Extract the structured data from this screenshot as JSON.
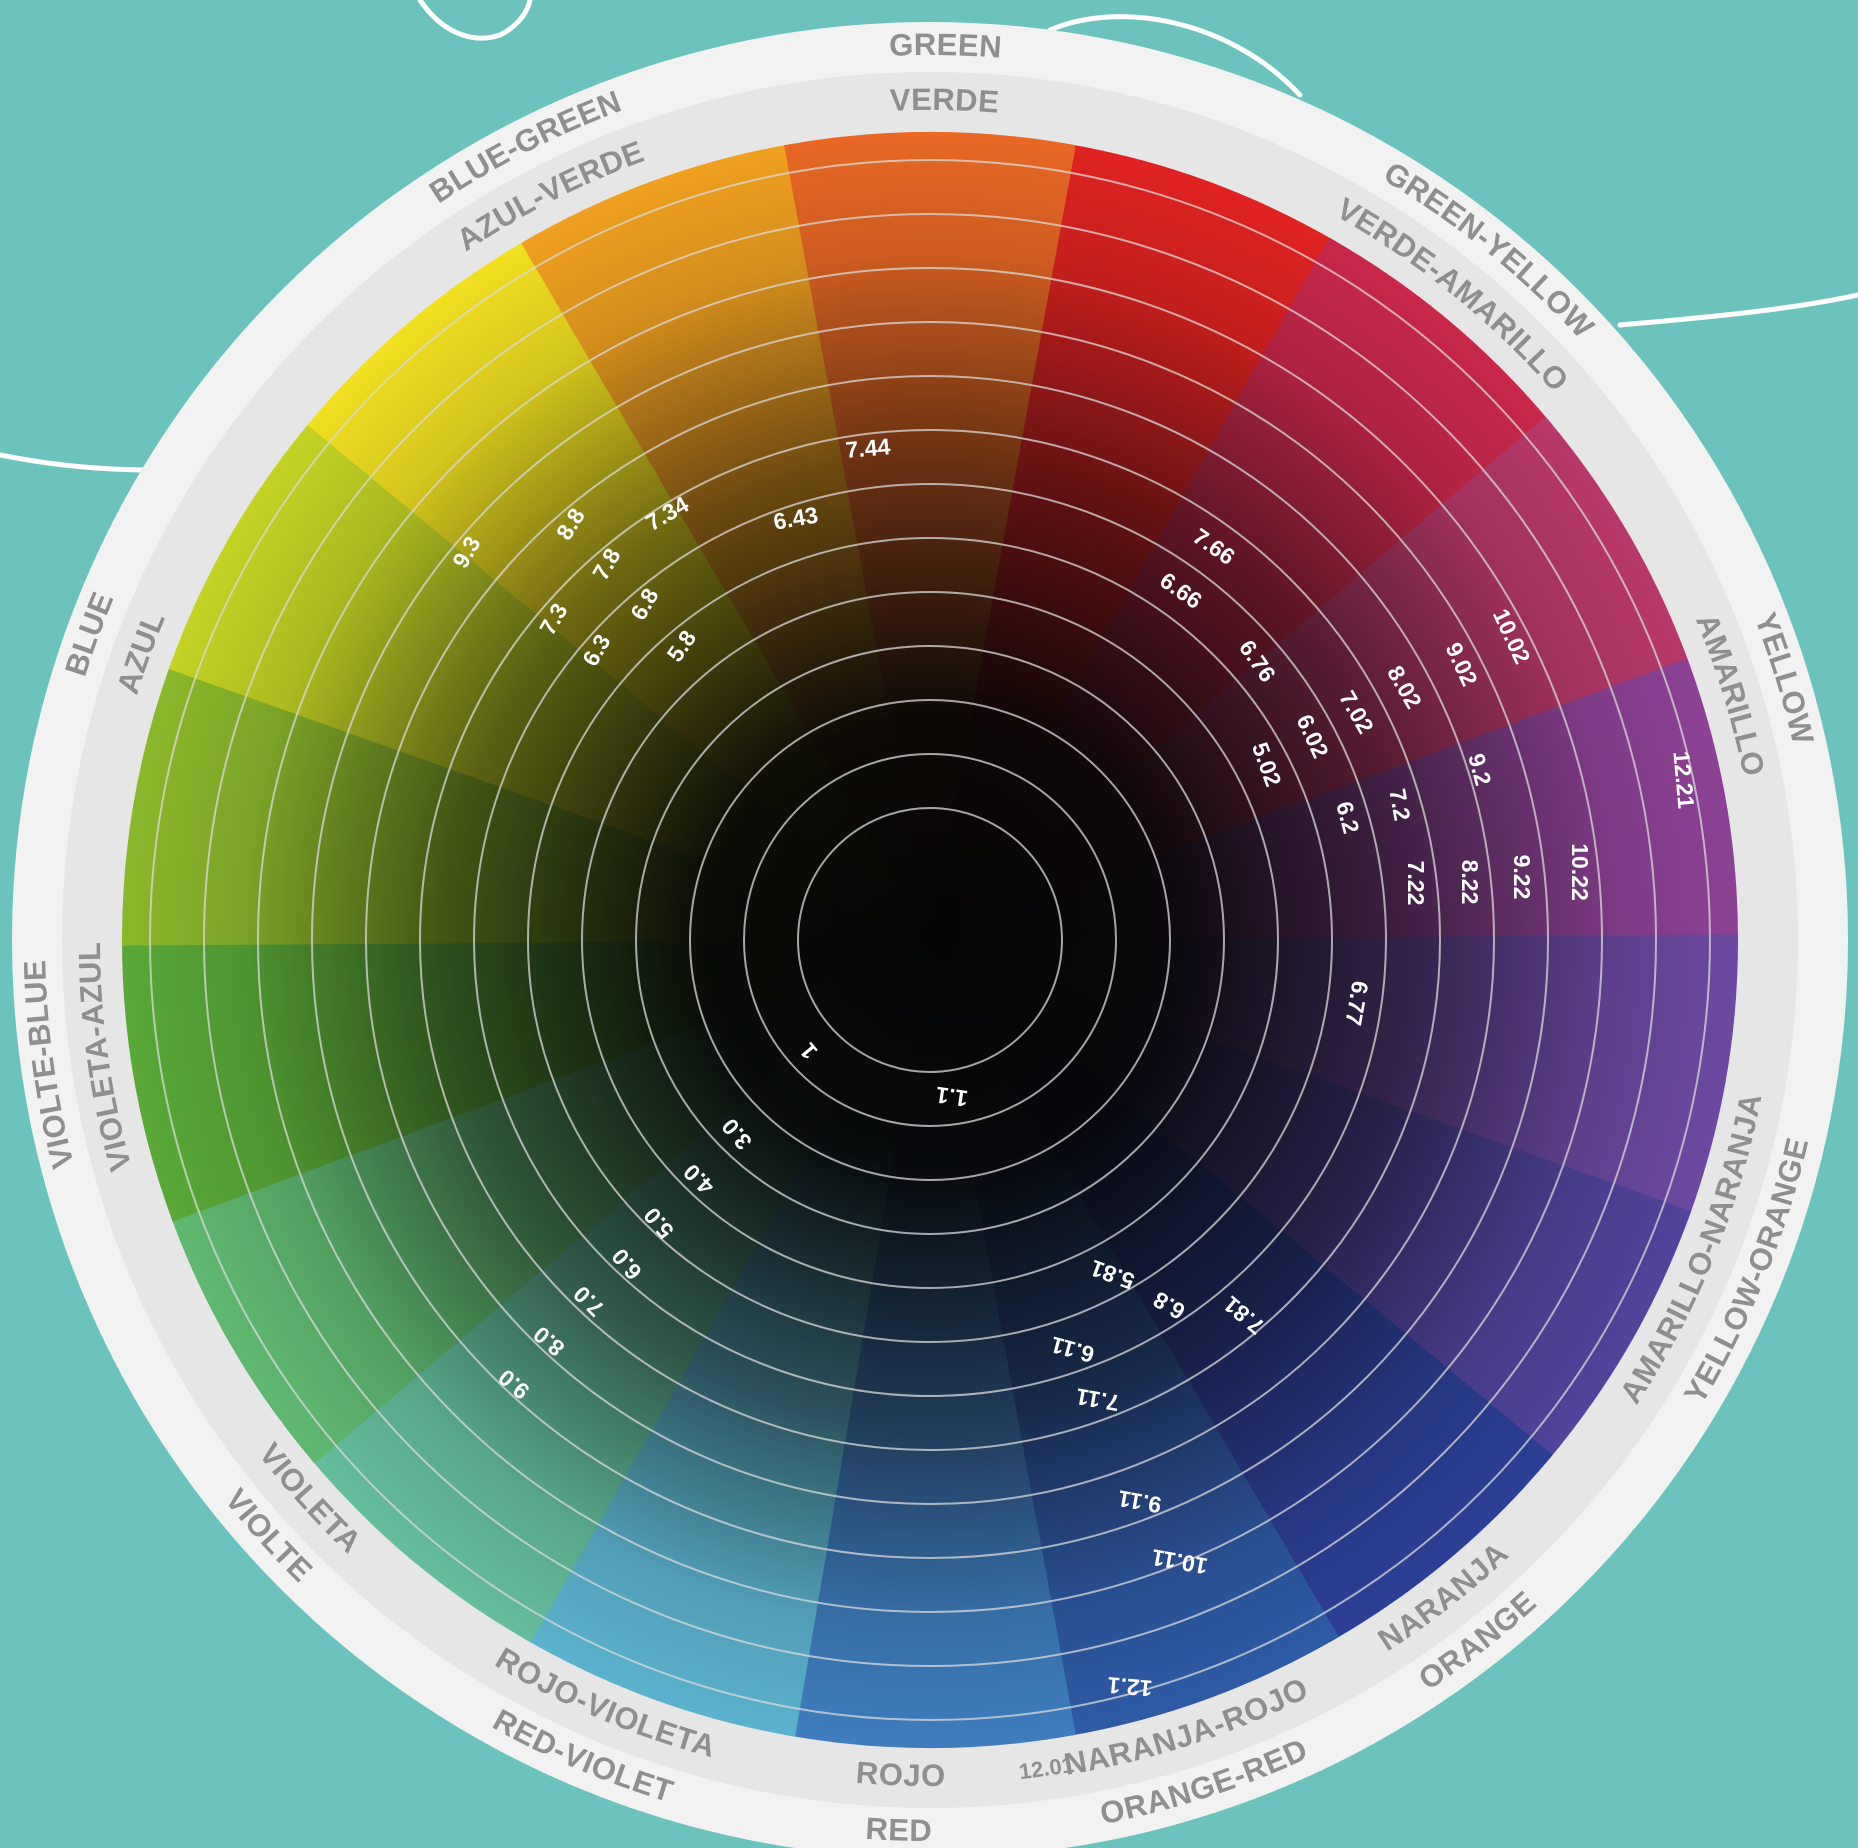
{
  "colors": {
    "background": "#6cc3be",
    "outer_ring": "#f2f2f2",
    "inner_ring": "#e6e6e6",
    "band_text": "#8f8f8f",
    "value_text": "#ffffff",
    "center": "#050505",
    "divider": "#d9d9d9"
  },
  "wheel": {
    "segments": [
      {
        "color": "#e02222"
      },
      {
        "color": "#c8284a"
      },
      {
        "color": "#b8386a"
      },
      {
        "color": "#8c4294"
      },
      {
        "color": "#6c48a0"
      },
      {
        "color": "#50449c"
      },
      {
        "color": "#2c3f96"
      },
      {
        "color": "#2f5aa6"
      },
      {
        "color": "#3f7dbe"
      },
      {
        "color": "#5bb2cc"
      },
      {
        "color": "#64bd9c"
      },
      {
        "color": "#60b870"
      },
      {
        "color": "#5aa838"
      },
      {
        "color": "#8ab82a"
      },
      {
        "color": "#c4d224"
      },
      {
        "color": "#f0e020"
      },
      {
        "color": "#f0a020"
      },
      {
        "color": "#e86824"
      }
    ],
    "outer_labels": [
      {
        "text": "GREEN",
        "angle": -89
      },
      {
        "text": "GREEN-YELLOW",
        "angle": -51
      },
      {
        "text": "YELLOW",
        "angle": -17
      },
      {
        "text": "YELLOW-ORANGE",
        "angle": 22
      },
      {
        "text": "ORANGE",
        "angle": 52
      },
      {
        "text": "ORANGE-RED",
        "angle": 72
      },
      {
        "text": "RED",
        "angle": 92
      },
      {
        "text": "RED-VIOLET",
        "angle": 113
      },
      {
        "text": "VIOLTE",
        "angle": 138
      },
      {
        "text": "VIOLTE-BLUE",
        "angle": 172
      },
      {
        "text": "BLUE",
        "angle": -160
      },
      {
        "text": "BLUE-GREEN",
        "angle": -117
      }
    ],
    "inner_labels": [
      {
        "text": "VERDE",
        "angle": -89
      },
      {
        "text": "VERDE-AMARILLO",
        "angle": -51
      },
      {
        "text": "AMARILLO",
        "angle": -17
      },
      {
        "text": "AMARILLO-NARANJA",
        "angle": 22
      },
      {
        "text": "NARANJA",
        "angle": 52
      },
      {
        "text": "NARANJA-ROJO",
        "angle": 72
      },
      {
        "text": "ROJO",
        "angle": 92
      },
      {
        "text": "ROJO-VIOLETA",
        "angle": 113
      },
      {
        "text": "VIOLETA",
        "angle": 138
      },
      {
        "text": "VIOLETA-AZUL",
        "angle": 172
      },
      {
        "text": "AZUL",
        "angle": -160
      },
      {
        "text": "AZUL-VERDE",
        "angle": -117
      }
    ],
    "ring_footnote": {
      "text": "12.01"
    },
    "value_labels": [
      {
        "text": "7.44"
      },
      {
        "text": "6.43"
      },
      {
        "text": "9.3"
      },
      {
        "text": "8.8"
      },
      {
        "text": "7.34"
      },
      {
        "text": "7.8"
      },
      {
        "text": "7.3"
      },
      {
        "text": "6.8"
      },
      {
        "text": "6.3"
      },
      {
        "text": "5.8"
      },
      {
        "text": "7.66"
      },
      {
        "text": "6.66"
      },
      {
        "text": "6.76"
      },
      {
        "text": "5.02"
      },
      {
        "text": "6.02"
      },
      {
        "text": "7.02"
      },
      {
        "text": "8.02"
      },
      {
        "text": "9.02"
      },
      {
        "text": "10.02"
      },
      {
        "text": "6.2"
      },
      {
        "text": "7.2"
      },
      {
        "text": "9.2"
      },
      {
        "text": "12.21"
      },
      {
        "text": "7.22"
      },
      {
        "text": "8.22"
      },
      {
        "text": "9.22"
      },
      {
        "text": "10.22"
      },
      {
        "text": "6.77"
      },
      {
        "text": "1"
      },
      {
        "text": "1.1"
      },
      {
        "text": "3.0"
      },
      {
        "text": "4.0"
      },
      {
        "text": "5.0"
      },
      {
        "text": "6.0"
      },
      {
        "text": "7.0"
      },
      {
        "text": "8.0"
      },
      {
        "text": "9.0"
      },
      {
        "text": "5.81"
      },
      {
        "text": "6.8"
      },
      {
        "text": "7.81"
      },
      {
        "text": "6.11"
      },
      {
        "text": "7.11"
      },
      {
        "text": "9.11"
      },
      {
        "text": "10.11"
      },
      {
        "text": "12.1"
      }
    ]
  }
}
